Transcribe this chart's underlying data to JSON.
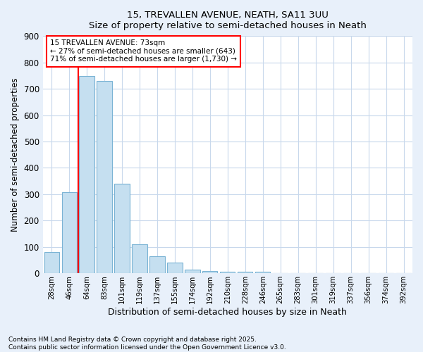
{
  "title_line1": "15, TREVALLEN AVENUE, NEATH, SA11 3UU",
  "title_line2": "Size of property relative to semi-detached houses in Neath",
  "xlabel": "Distribution of semi-detached houses by size in Neath",
  "ylabel": "Number of semi-detached properties",
  "categories": [
    "28sqm",
    "46sqm",
    "64sqm",
    "83sqm",
    "101sqm",
    "119sqm",
    "137sqm",
    "155sqm",
    "174sqm",
    "192sqm",
    "210sqm",
    "228sqm",
    "246sqm",
    "265sqm",
    "283sqm",
    "301sqm",
    "319sqm",
    "337sqm",
    "356sqm",
    "374sqm",
    "392sqm"
  ],
  "values": [
    80,
    308,
    748,
    730,
    340,
    110,
    65,
    40,
    14,
    10,
    5,
    5,
    5,
    0,
    0,
    0,
    0,
    0,
    0,
    0,
    0
  ],
  "bar_color": "#c5dff0",
  "bar_edge_color": "#7ab3d4",
  "vline_color": "red",
  "vline_position": 1.5,
  "annotation_title": "15 TREVALLEN AVENUE: 73sqm",
  "annotation_line1": "← 27% of semi-detached houses are smaller (643)",
  "annotation_line2": "71% of semi-detached houses are larger (1,730) →",
  "annotation_box_color": "red",
  "ylim": [
    0,
    900
  ],
  "yticks": [
    0,
    100,
    200,
    300,
    400,
    500,
    600,
    700,
    800,
    900
  ],
  "plot_bg_color": "#ffffff",
  "fig_bg_color": "#e8f0fa",
  "grid_color": "#c8d8ec",
  "footer_line1": "Contains HM Land Registry data © Crown copyright and database right 2025.",
  "footer_line2": "Contains public sector information licensed under the Open Government Licence v3.0."
}
